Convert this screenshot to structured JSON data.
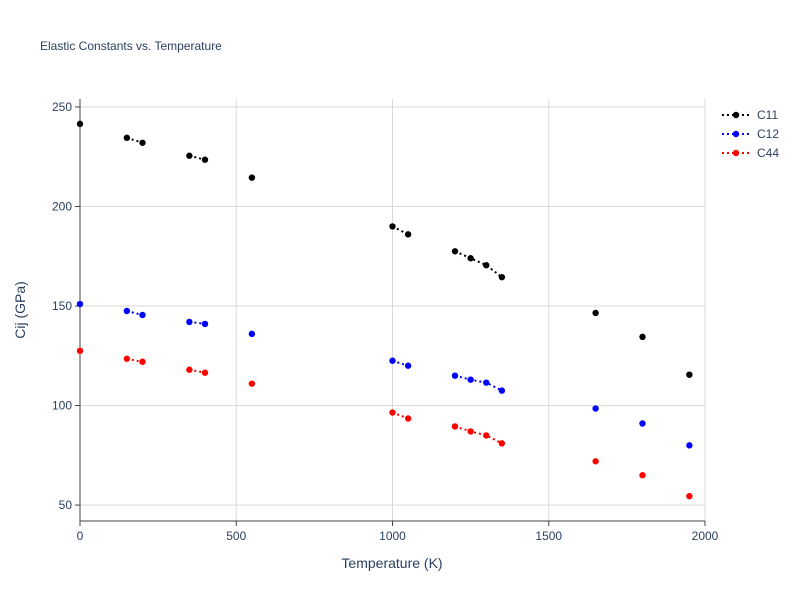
{
  "chart_data": {
    "type": "scatter",
    "title": "Elastic Constants vs. Temperature",
    "xlabel": "Temperature (K)",
    "ylabel": "Cij (GPa)",
    "xlim": [
      0,
      2000
    ],
    "ylim": [
      42,
      254
    ],
    "xticks": [
      0,
      500,
      1000,
      1500,
      2000
    ],
    "yticks": [
      50,
      100,
      150,
      200,
      250
    ],
    "grid": true,
    "legend": "top-right",
    "series": [
      {
        "name": "C11",
        "color": "#000000",
        "line": "dotted",
        "x": [
          0,
          150,
          200,
          350,
          400,
          550,
          1000,
          1050,
          1200,
          1250,
          1300,
          1350,
          1650,
          1800,
          1950
        ],
        "y": [
          241.5,
          234.5,
          232,
          225.5,
          223.5,
          214.5,
          190,
          186,
          177.5,
          174,
          170.5,
          164.5,
          146.5,
          134.5,
          115.5
        ],
        "segments": [
          [
            1,
            2
          ],
          [
            3,
            4
          ],
          [
            6,
            7
          ],
          [
            8,
            9,
            10,
            11
          ]
        ]
      },
      {
        "name": "C12",
        "color": "#0000ff",
        "line": "dotted",
        "x": [
          0,
          150,
          200,
          350,
          400,
          550,
          1000,
          1050,
          1200,
          1250,
          1300,
          1350,
          1650,
          1800,
          1950
        ],
        "y": [
          151,
          147.5,
          145.5,
          142,
          141,
          136,
          122.5,
          120,
          115,
          113,
          111.5,
          107.5,
          98.5,
          91,
          80
        ],
        "segments": [
          [
            1,
            2
          ],
          [
            3,
            4
          ],
          [
            6,
            7
          ],
          [
            8,
            9,
            10,
            11
          ]
        ]
      },
      {
        "name": "C44",
        "color": "#ff0000",
        "line": "dotted",
        "x": [
          0,
          150,
          200,
          350,
          400,
          550,
          1000,
          1050,
          1200,
          1250,
          1300,
          1350,
          1650,
          1800,
          1950
        ],
        "y": [
          127.5,
          123.5,
          122,
          118,
          116.5,
          111,
          96.5,
          93.5,
          89.5,
          87,
          85,
          81,
          72,
          65,
          54.5
        ],
        "segments": [
          [
            1,
            2
          ],
          [
            3,
            4
          ],
          [
            6,
            7
          ],
          [
            8,
            9,
            10,
            11
          ]
        ]
      }
    ]
  }
}
